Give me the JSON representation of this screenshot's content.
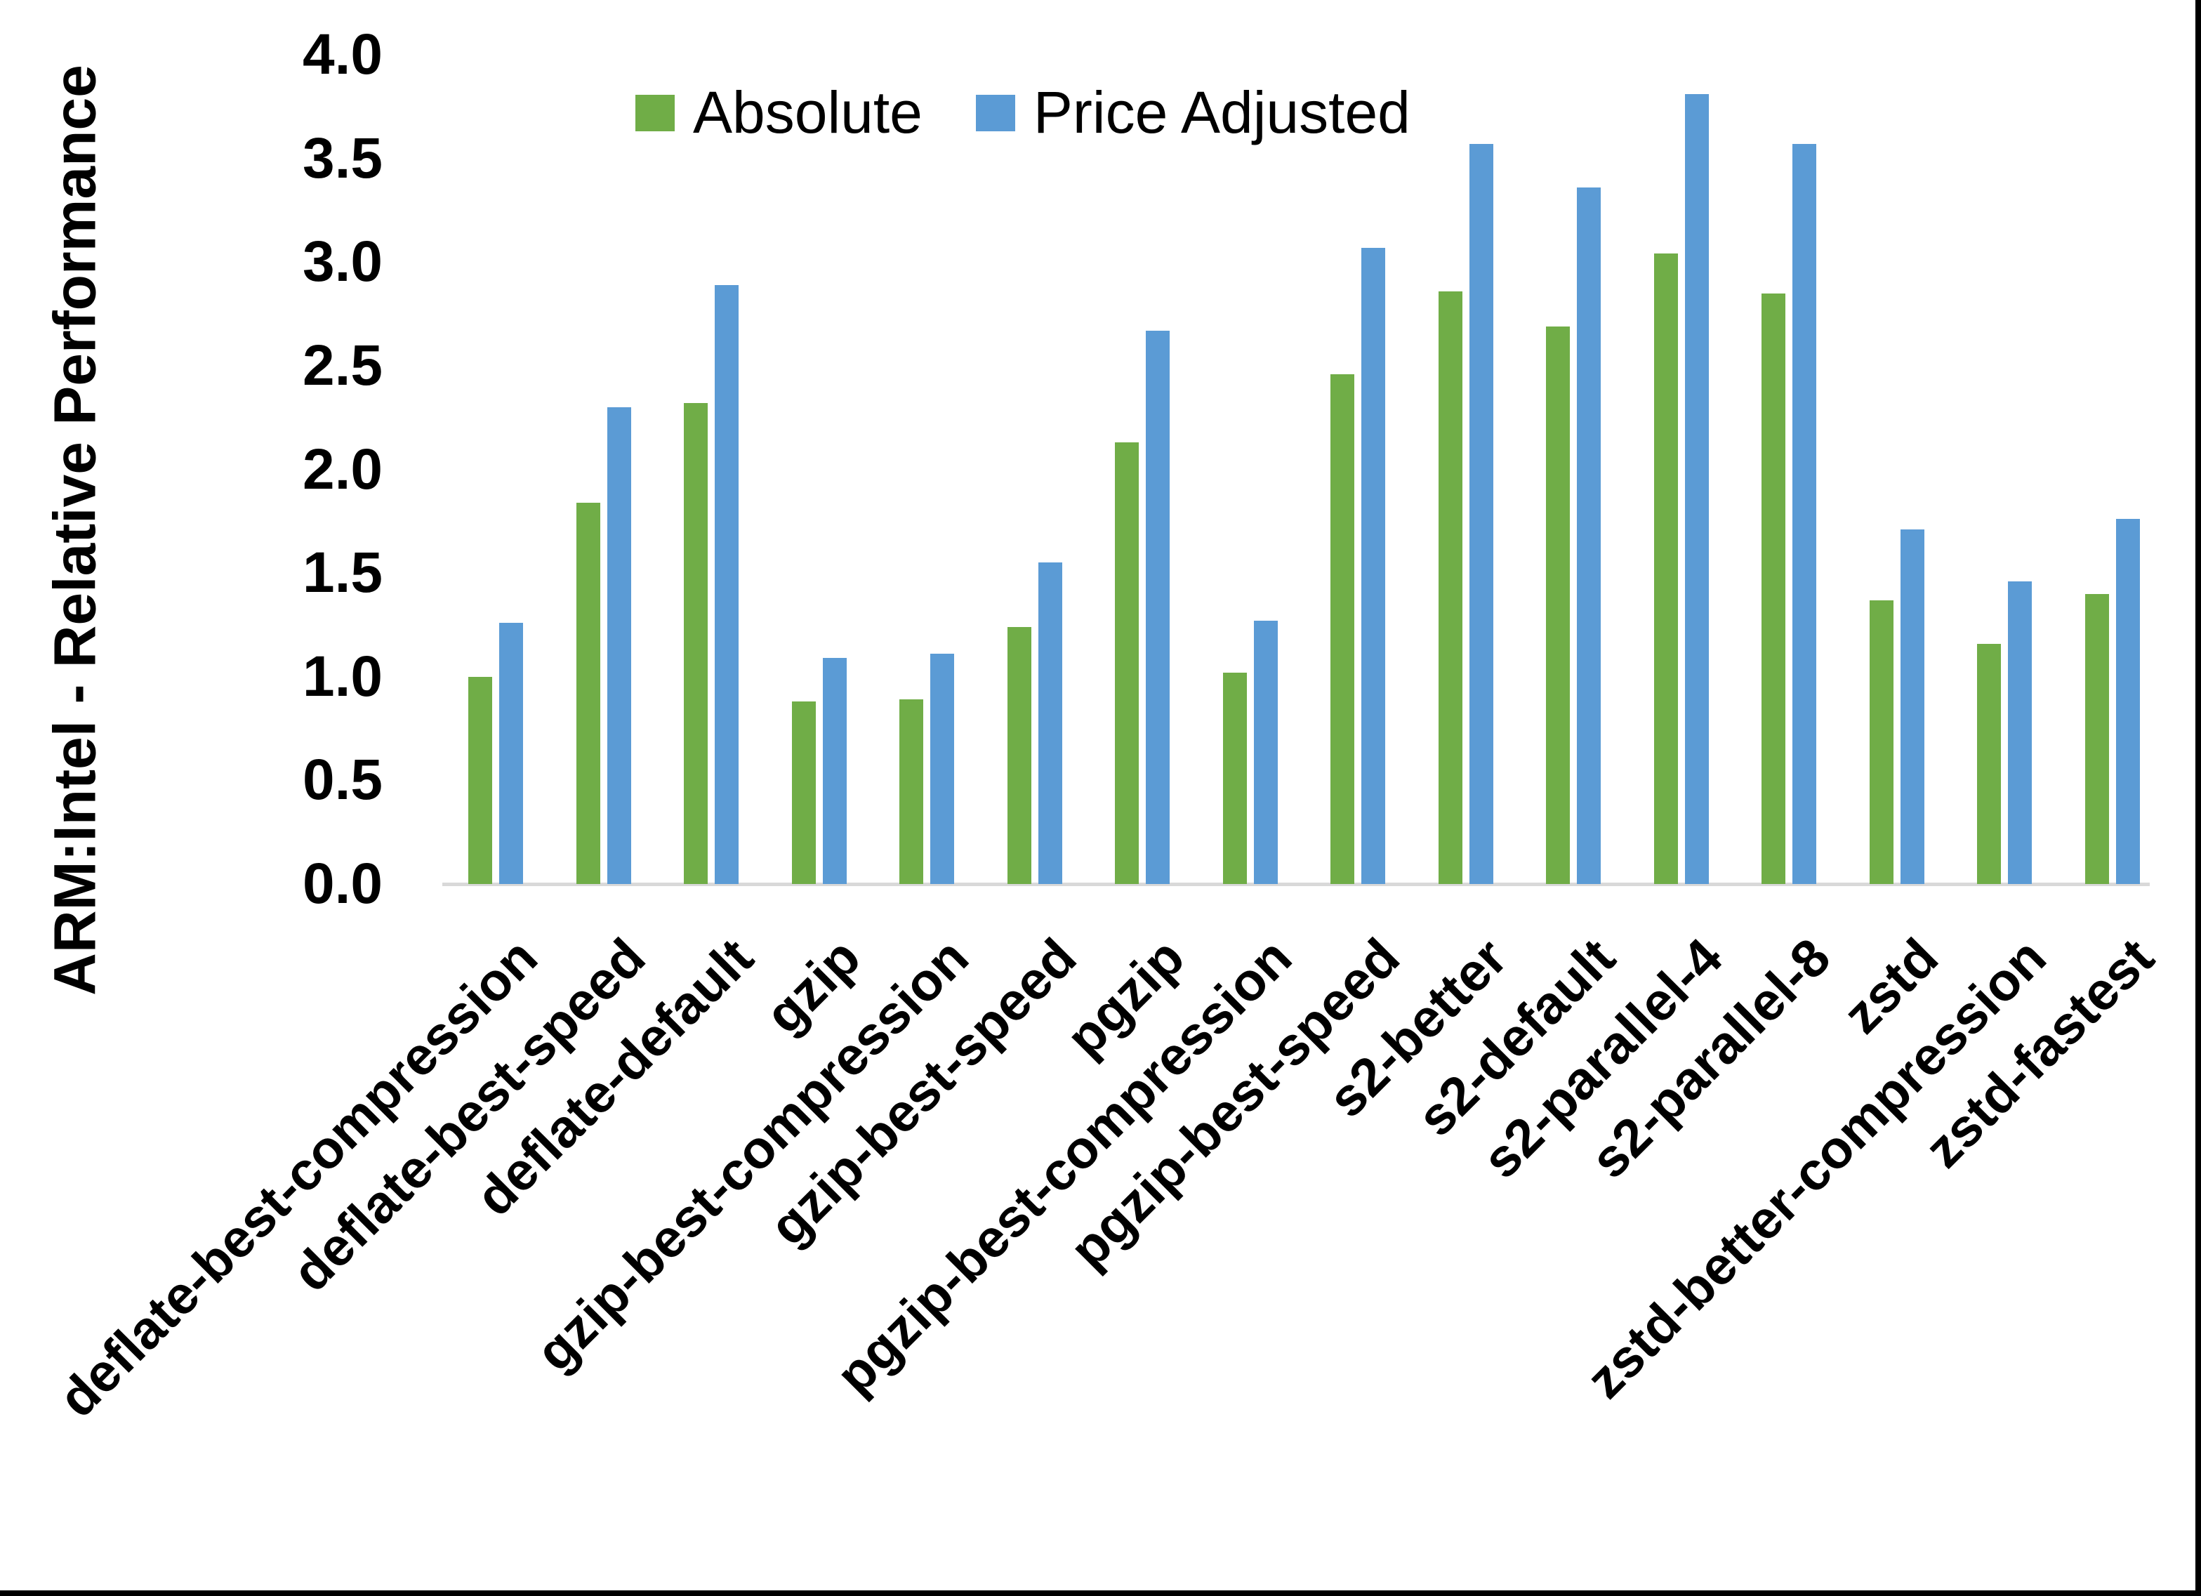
{
  "chart_data": {
    "type": "bar",
    "title": "",
    "ylabel": "ARM:Intel - Relative Performance",
    "xlabel": "",
    "ylim": [
      0.0,
      4.0
    ],
    "ytick_step": 0.5,
    "yticks": [
      "0.0",
      "0.5",
      "1.0",
      "1.5",
      "2.0",
      "2.5",
      "3.0",
      "3.5",
      "4.0"
    ],
    "grid": false,
    "legend_position": "top-center",
    "categories": [
      "deflate-best-compression",
      "deflate-best-speed",
      "deflate-default",
      "gzip",
      "gzip-best-compression",
      "gzip-best-speed",
      "pgzip",
      "pgzip-best-compression",
      "pgzip-best-speed",
      "s2-better",
      "s2-default",
      "s2-parallel-4",
      "s2-parallel-8",
      "zstd",
      "zstd-better-compression",
      "zstd-fastest"
    ],
    "series": [
      {
        "name": "Absolute",
        "color": "#70AD47",
        "values": [
          1.0,
          1.84,
          2.32,
          0.88,
          0.89,
          1.24,
          2.13,
          1.02,
          2.46,
          2.86,
          2.69,
          3.04,
          2.85,
          1.37,
          1.16,
          1.4
        ]
      },
      {
        "name": "Price Adjusted",
        "color": "#5B9BD5",
        "values": [
          1.26,
          2.3,
          2.89,
          1.09,
          1.11,
          1.55,
          2.67,
          1.27,
          3.07,
          3.57,
          3.36,
          3.81,
          3.57,
          1.71,
          1.46,
          1.76
        ]
      }
    ],
    "axis_color": "#d9d9d9",
    "text_color": "#000000",
    "background": "#ffffff"
  }
}
